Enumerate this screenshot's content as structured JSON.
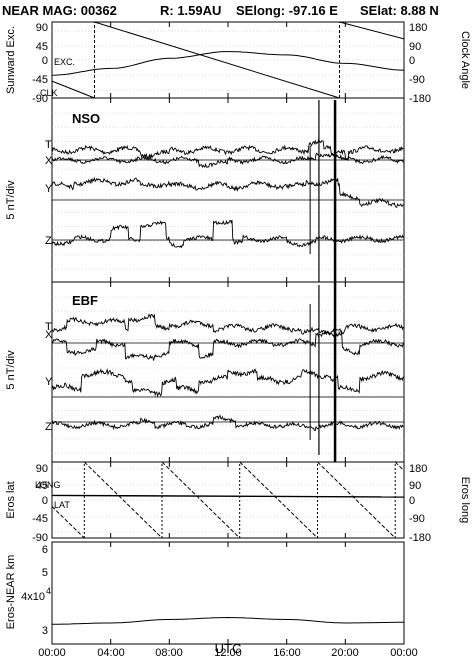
{
  "header": {
    "title": "NEAR MAG: 00362",
    "r": "R: 1.59AU",
    "selong": "SElong:  -97.16 E",
    "selat": "SElat:    8.88 N"
  },
  "x_axis": {
    "title": "UTC",
    "ticks": [
      "00:00",
      "04:00",
      "08:00",
      "12:00",
      "16:00",
      "20:00",
      "00:00"
    ]
  },
  "chart_data": [
    {
      "type": "line",
      "panel": "angles",
      "ylabel_left": "Sunward Exc.",
      "ylabel_right": "Clock Angle",
      "left_ticks": [
        "90",
        "45",
        "0",
        "-45",
        "-90"
      ],
      "right_ticks": [
        "180",
        "90",
        "0",
        "-90",
        "-180"
      ],
      "ylim_left": [
        -90,
        90
      ],
      "ylim_right": [
        -180,
        180
      ],
      "annotations": [
        "EXC.",
        "CLK"
      ],
      "series": [
        {
          "name": "EXC.",
          "x_hours": [
            0,
            4,
            8,
            12,
            16,
            20,
            24
          ],
          "values": [
            -36,
            -20,
            4,
            20,
            12,
            -8,
            -24
          ]
        },
        {
          "name": "CLK",
          "x_hours": [
            0,
            2.9,
            2.9,
            19.6,
            19.6,
            24
          ],
          "values": [
            -100,
            -180,
            180,
            -180,
            180,
            100
          ]
        }
      ]
    },
    {
      "type": "line",
      "panel": "NSO",
      "name": "NSO",
      "ylabel": "5 nT/div",
      "components": [
        "T",
        "X",
        "Y",
        "Z"
      ]
    },
    {
      "type": "line",
      "panel": "EBF",
      "name": "EBF",
      "ylabel": "5 nT/div",
      "components": [
        "T",
        "X",
        "Y",
        "Z"
      ]
    },
    {
      "type": "line",
      "panel": "eros",
      "ylabel_left": "Eros lat",
      "ylabel_right": "Eros long",
      "left_ticks": [
        "90",
        "45",
        "0",
        "-45",
        "-90"
      ],
      "right_ticks": [
        "180",
        "90",
        "0",
        "-90",
        "-180"
      ],
      "ylim_left": [
        -90,
        90
      ],
      "ylim_right": [
        -180,
        180
      ],
      "annotations": [
        "LONG",
        "LAT"
      ],
      "series": [
        {
          "name": "LONG",
          "period_hours": 5.3,
          "range": [
            -180,
            180
          ]
        },
        {
          "name": "LAT",
          "x_hours": [
            0,
            24
          ],
          "values": [
            11,
            7
          ]
        }
      ]
    },
    {
      "type": "line",
      "panel": "range",
      "ylabel": "Eros-NEAR km",
      "left_ticks": [
        "6",
        "5",
        "4x10",
        "3"
      ],
      "tick_exponent": "4",
      "series": [
        {
          "name": "range",
          "x_hours": [
            0,
            4,
            8,
            12,
            16,
            20,
            24
          ],
          "values": [
            36200,
            36600,
            37700,
            38300,
            37700,
            36600,
            36800
          ]
        }
      ]
    }
  ]
}
